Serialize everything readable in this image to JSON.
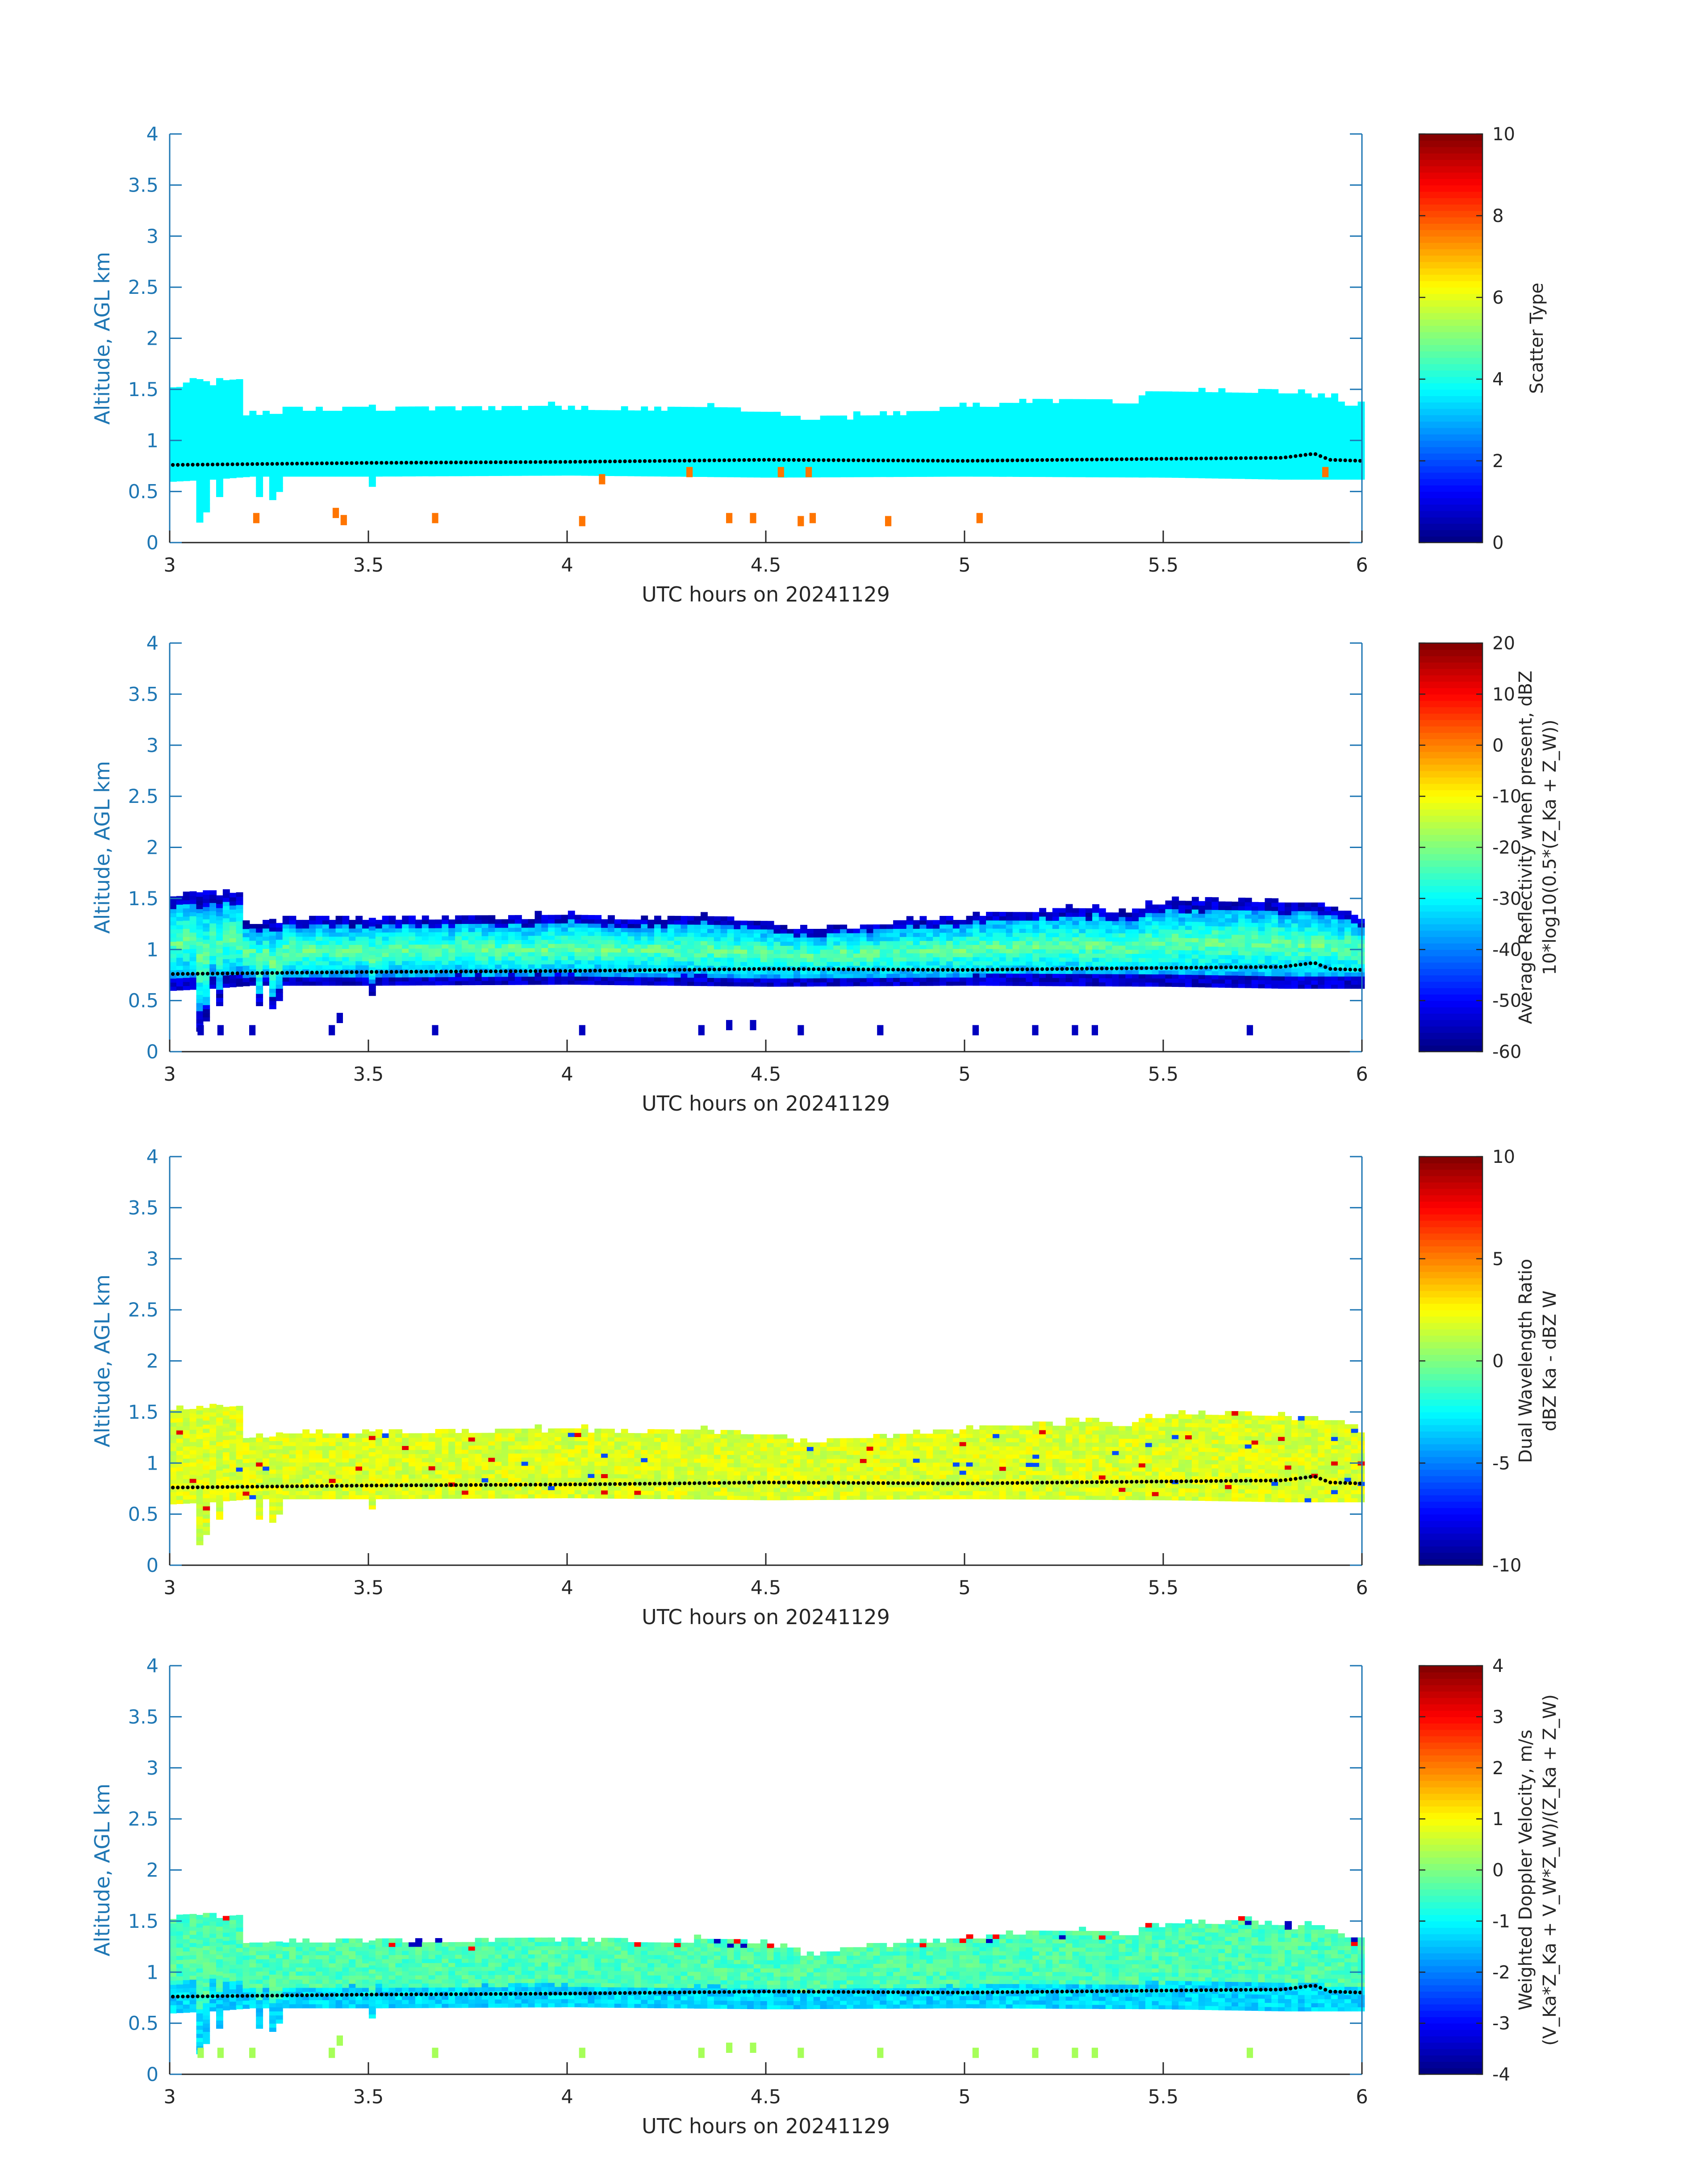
{
  "chart_data": [
    {
      "type": "heatmap",
      "xlabel": "UTC hours on 20241129",
      "ylabel": "Altitude, AGL km",
      "xlim": [
        3,
        6
      ],
      "ylim": [
        0,
        4
      ],
      "xticks": [
        "3",
        "3.5",
        "4",
        "4.5",
        "5",
        "5.5",
        "6"
      ],
      "yticks": [
        "0",
        "0.5",
        "1",
        "1.5",
        "2",
        "2.5",
        "3",
        "3.5",
        "4"
      ],
      "colorbar": {
        "label_lines": [
          "Scatter Type"
        ],
        "range": [
          0,
          10
        ],
        "ticks": [
          "0",
          "2",
          "4",
          "6",
          "8",
          "10"
        ],
        "colormap": "jet"
      },
      "field": {
        "kind": "scatter_type",
        "base_value": 3.7,
        "clutter_value": 7.6
      }
    },
    {
      "type": "heatmap",
      "xlabel": "UTC hours on 20241129",
      "ylabel": "Altitude, AGL km",
      "xlim": [
        3,
        6
      ],
      "ylim": [
        0,
        4
      ],
      "xticks": [
        "3",
        "3.5",
        "4",
        "4.5",
        "5",
        "5.5",
        "6"
      ],
      "yticks": [
        "0",
        "0.5",
        "1",
        "1.5",
        "2",
        "2.5",
        "3",
        "3.5",
        "4"
      ],
      "colorbar": {
        "label_lines": [
          "Average Reflectivity when present, dBZ",
          "10*log10(0.5*(Z_Ka + Z_W))"
        ],
        "range": [
          -60,
          20
        ],
        "ticks": [
          "-60",
          "-50",
          "-40",
          "-30",
          "-20",
          "-10",
          "0",
          "10",
          "20"
        ],
        "colormap": "jet"
      },
      "field": {
        "kind": "reflectivity",
        "core_value": -22,
        "edge_value": -58,
        "clutter_value": -55
      }
    },
    {
      "type": "heatmap",
      "xlabel": "UTC hours on 20241129",
      "ylabel": "Altitude, AGL km",
      "xlim": [
        3,
        6
      ],
      "ylim": [
        0,
        4
      ],
      "xticks": [
        "3",
        "3.5",
        "4",
        "4.5",
        "5",
        "5.5",
        "6"
      ],
      "yticks": [
        "0",
        "0.5",
        "1",
        "1.5",
        "2",
        "2.5",
        "3",
        "3.5",
        "4"
      ],
      "colorbar": {
        "label_lines": [
          "Dual Wavelength Ratio",
          "dBZ Ka - dBZ W"
        ],
        "range": [
          -10,
          10
        ],
        "ticks": [
          "-10",
          "-5",
          "0",
          "5",
          "10"
        ],
        "colormap": "jet"
      },
      "field": {
        "kind": "dwr",
        "core_value": 1.8
      }
    },
    {
      "type": "heatmap",
      "xlabel": "UTC hours on 20241129",
      "ylabel": "Altitude, AGL km",
      "xlim": [
        3,
        6
      ],
      "ylim": [
        0,
        4
      ],
      "xticks": [
        "3",
        "3.5",
        "4",
        "4.5",
        "5",
        "5.5",
        "6"
      ],
      "yticks": [
        "0",
        "0.5",
        "1",
        "1.5",
        "2",
        "2.5",
        "3",
        "3.5",
        "4"
      ],
      "colorbar": {
        "label_lines": [
          "Weighted Doppler Velocity, m/s",
          "(V_Ka*Z_Ka + V_W*Z_W)/(Z_Ka + Z_W)"
        ],
        "range": [
          -4,
          4
        ],
        "ticks": [
          "-4",
          "-3",
          "-2",
          "-1",
          "0",
          "1",
          "2",
          "3",
          "4"
        ],
        "colormap": "jet"
      },
      "field": {
        "kind": "velocity",
        "core_value": -0.4,
        "lower_value": -1.3
      }
    }
  ],
  "cloud": {
    "x_start": 3.0,
    "x_end": 6.0,
    "bin_hours": 0.0167,
    "z_bin_km": 0.04,
    "top_km": [
      [
        3.0,
        1.5
      ],
      [
        3.06,
        1.55
      ],
      [
        3.17,
        1.55
      ],
      [
        3.17,
        1.25
      ],
      [
        3.3,
        1.28
      ],
      [
        3.5,
        1.3
      ],
      [
        3.8,
        1.3
      ],
      [
        4.0,
        1.32
      ],
      [
        4.2,
        1.28
      ],
      [
        4.35,
        1.32
      ],
      [
        4.5,
        1.25
      ],
      [
        4.6,
        1.18
      ],
      [
        4.7,
        1.22
      ],
      [
        4.9,
        1.28
      ],
      [
        5.1,
        1.35
      ],
      [
        5.3,
        1.4
      ],
      [
        5.42,
        1.35
      ],
      [
        5.45,
        1.45
      ],
      [
        5.7,
        1.48
      ],
      [
        5.9,
        1.42
      ],
      [
        6.0,
        1.3
      ]
    ],
    "base_km": [
      [
        3.0,
        0.6
      ],
      [
        3.1,
        0.62
      ],
      [
        3.2,
        0.65
      ],
      [
        3.5,
        0.65
      ],
      [
        4.0,
        0.66
      ],
      [
        4.5,
        0.64
      ],
      [
        5.0,
        0.65
      ],
      [
        5.5,
        0.64
      ],
      [
        5.8,
        0.62
      ],
      [
        6.0,
        0.62
      ]
    ],
    "dips": [
      [
        3.07,
        0.2
      ],
      [
        3.08,
        0.3
      ],
      [
        3.12,
        0.45
      ],
      [
        3.22,
        0.45
      ],
      [
        3.25,
        0.42
      ],
      [
        3.27,
        0.5
      ],
      [
        3.5,
        0.55
      ]
    ],
    "lidar_base_km": [
      [
        3.0,
        0.76
      ],
      [
        3.5,
        0.78
      ],
      [
        4.0,
        0.79
      ],
      [
        4.5,
        0.81
      ],
      [
        5.0,
        0.8
      ],
      [
        5.5,
        0.82
      ],
      [
        5.8,
        0.83
      ],
      [
        5.88,
        0.87
      ],
      [
        5.92,
        0.81
      ],
      [
        6.0,
        0.8
      ]
    ],
    "clutter_reflectivity": [
      [
        3.07,
        0.2
      ],
      [
        3.12,
        0.2
      ],
      [
        3.2,
        0.2
      ],
      [
        3.4,
        0.2
      ],
      [
        3.42,
        0.32
      ],
      [
        3.66,
        0.2
      ],
      [
        4.03,
        0.2
      ],
      [
        4.33,
        0.2
      ],
      [
        4.4,
        0.25
      ],
      [
        4.46,
        0.25
      ],
      [
        4.58,
        0.2
      ],
      [
        4.78,
        0.2
      ],
      [
        5.02,
        0.2
      ],
      [
        5.17,
        0.2
      ],
      [
        5.27,
        0.2
      ],
      [
        5.32,
        0.2
      ],
      [
        5.71,
        0.2
      ]
    ],
    "clutter_scatter": [
      [
        3.21,
        0.25
      ],
      [
        3.41,
        0.3
      ],
      [
        3.43,
        0.23
      ],
      [
        3.66,
        0.25
      ],
      [
        4.03,
        0.22
      ],
      [
        4.4,
        0.25
      ],
      [
        4.46,
        0.25
      ],
      [
        4.58,
        0.22
      ],
      [
        4.61,
        0.25
      ],
      [
        4.8,
        0.22
      ],
      [
        5.03,
        0.25
      ],
      [
        4.08,
        0.63
      ],
      [
        4.3,
        0.7
      ],
      [
        4.53,
        0.7
      ],
      [
        4.6,
        0.7
      ],
      [
        5.9,
        0.7
      ]
    ]
  }
}
